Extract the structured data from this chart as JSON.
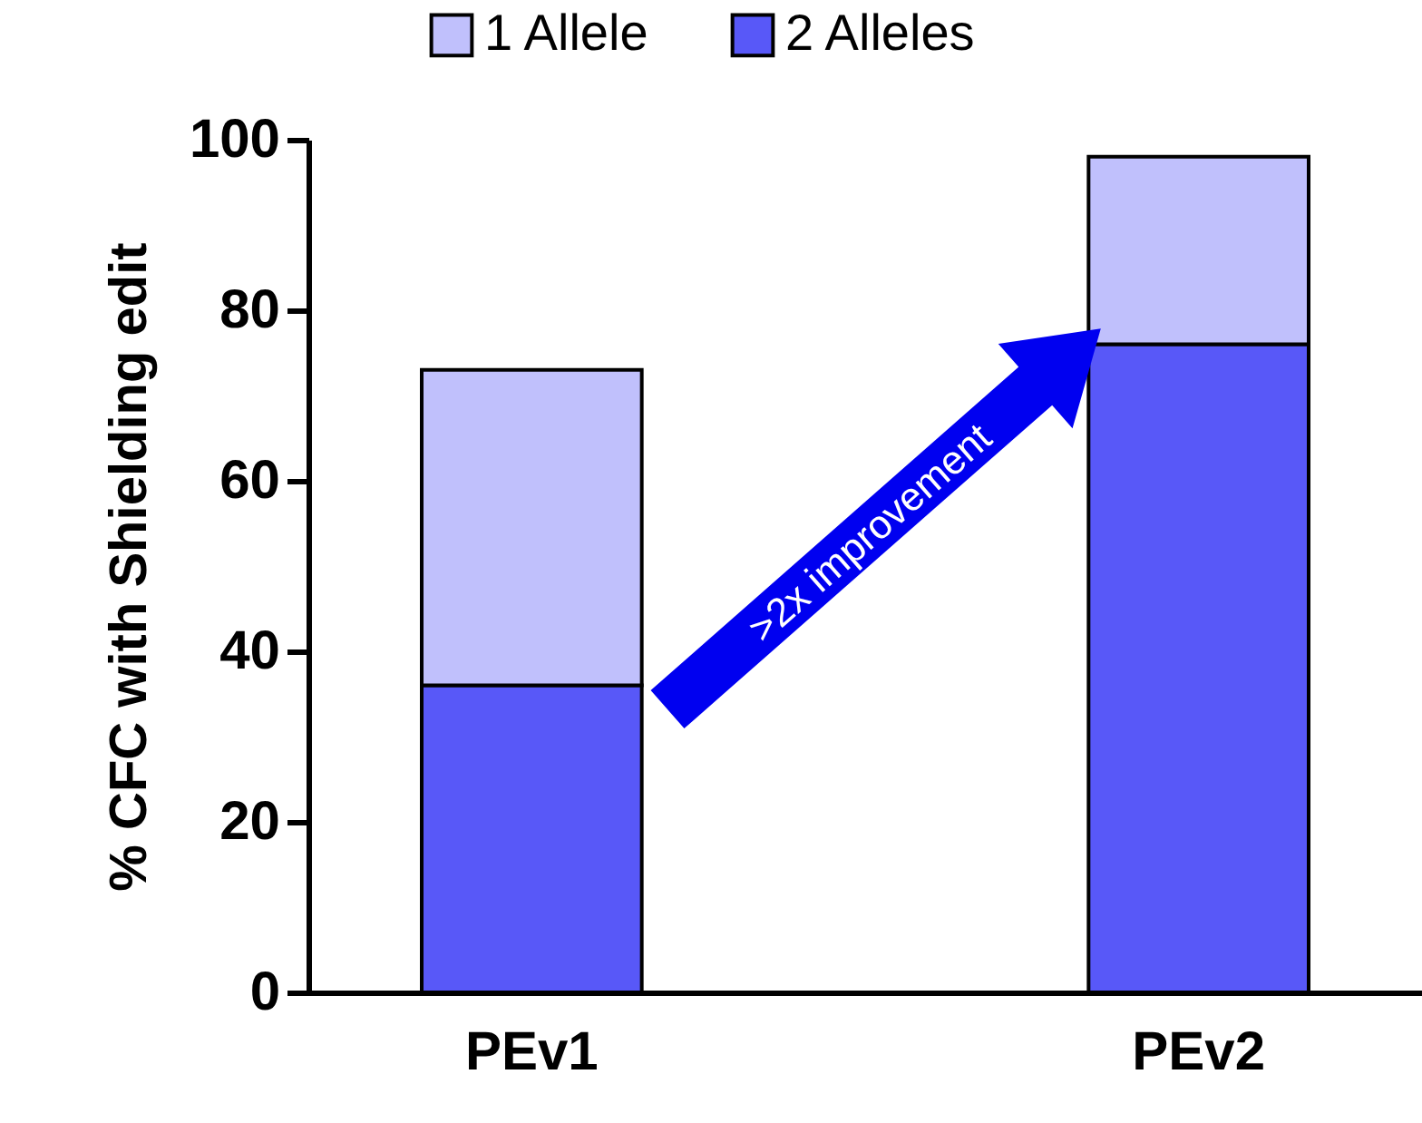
{
  "chart_data": {
    "type": "bar",
    "stacked": true,
    "categories": [
      "PEv1",
      "PEv2"
    ],
    "series": [
      {
        "name": "2 Alleles",
        "color": "#5858f8",
        "values": [
          36,
          76
        ]
      },
      {
        "name": "1 Allele",
        "color": "#c0c0fc",
        "values": [
          37,
          22
        ]
      }
    ],
    "ylabel": "% CFC with Shielding edit",
    "ylim": [
      0,
      100
    ],
    "yticks": [
      0,
      20,
      40,
      60,
      80,
      100
    ],
    "legend": "top",
    "grid": false,
    "annotations": [
      ">2x improvement"
    ]
  }
}
